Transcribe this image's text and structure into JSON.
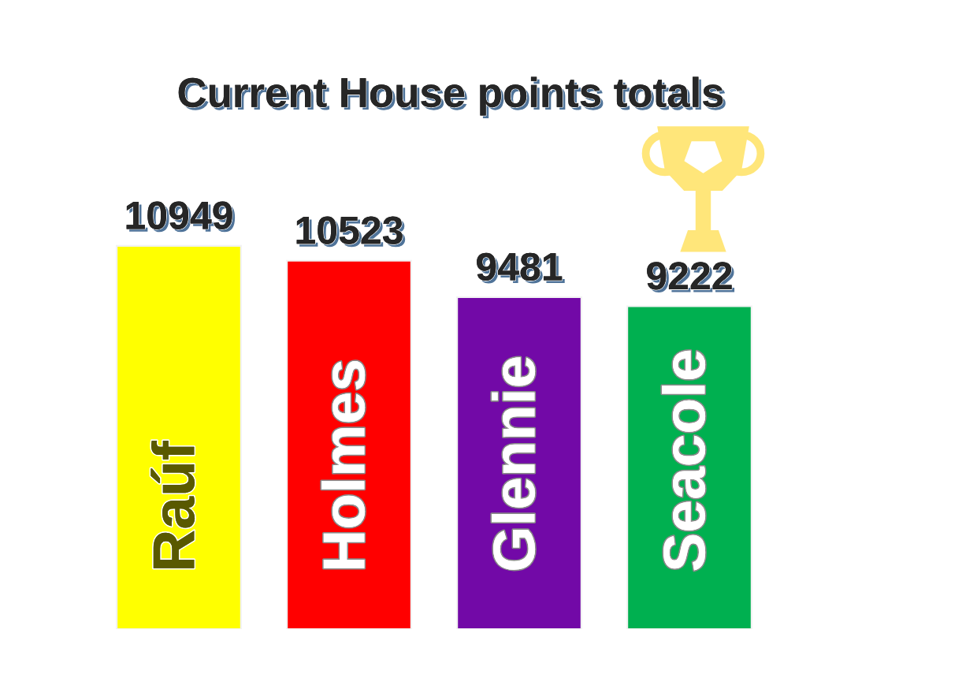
{
  "chart_data": {
    "type": "bar",
    "title": "Current House points totals",
    "categories": [
      "Raúf",
      "Holmes",
      "Glennie",
      "Seacole"
    ],
    "values": [
      10949,
      10523,
      9481,
      9222
    ],
    "colors": [
      "#ffff00",
      "#ff0000",
      "#7209a7",
      "#00b050"
    ],
    "data_labels": true,
    "tick_labels": "x"
  }
}
